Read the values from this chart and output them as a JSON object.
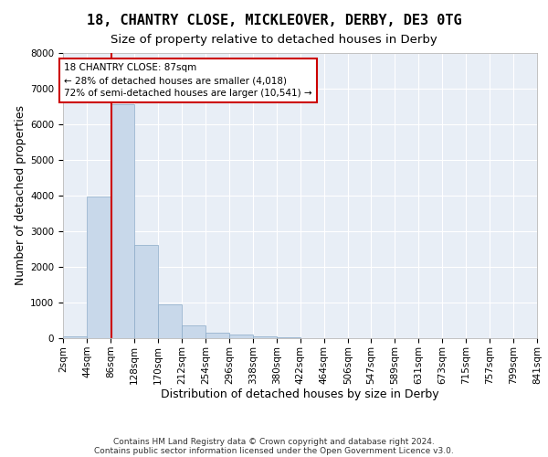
{
  "title_line1": "18, CHANTRY CLOSE, MICKLEOVER, DERBY, DE3 0TG",
  "title_line2": "Size of property relative to detached houses in Derby",
  "xlabel": "Distribution of detached houses by size in Derby",
  "ylabel": "Number of detached properties",
  "bar_color": "#c8d8ea",
  "bar_edge_color": "#8aaac8",
  "bg_color": "#e8eef6",
  "grid_color": "#ffffff",
  "annotation_box_color": "#cc0000",
  "annotation_text": "18 CHANTRY CLOSE: 87sqm\n← 28% of detached houses are smaller (4,018)\n72% of semi-detached houses are larger (10,541) →",
  "property_line_x": 87,
  "footer_line1": "Contains HM Land Registry data © Crown copyright and database right 2024.",
  "footer_line2": "Contains public sector information licensed under the Open Government Licence v3.0.",
  "bin_edges": [
    2,
    44,
    86,
    128,
    170,
    212,
    254,
    296,
    338,
    380,
    422,
    464,
    506,
    547,
    589,
    631,
    673,
    715,
    757,
    799,
    841
  ],
  "bin_counts": [
    50,
    3980,
    6550,
    2600,
    950,
    370,
    150,
    90,
    60,
    20,
    10,
    5,
    3,
    2,
    1,
    1,
    1,
    0,
    0,
    0
  ],
  "ylim": [
    0,
    8000
  ],
  "yticks": [
    0,
    1000,
    2000,
    3000,
    4000,
    5000,
    6000,
    7000,
    8000
  ],
  "title_fontsize": 11,
  "subtitle_fontsize": 9.5,
  "axis_label_fontsize": 9,
  "tick_fontsize": 7.5,
  "footer_fontsize": 6.5
}
